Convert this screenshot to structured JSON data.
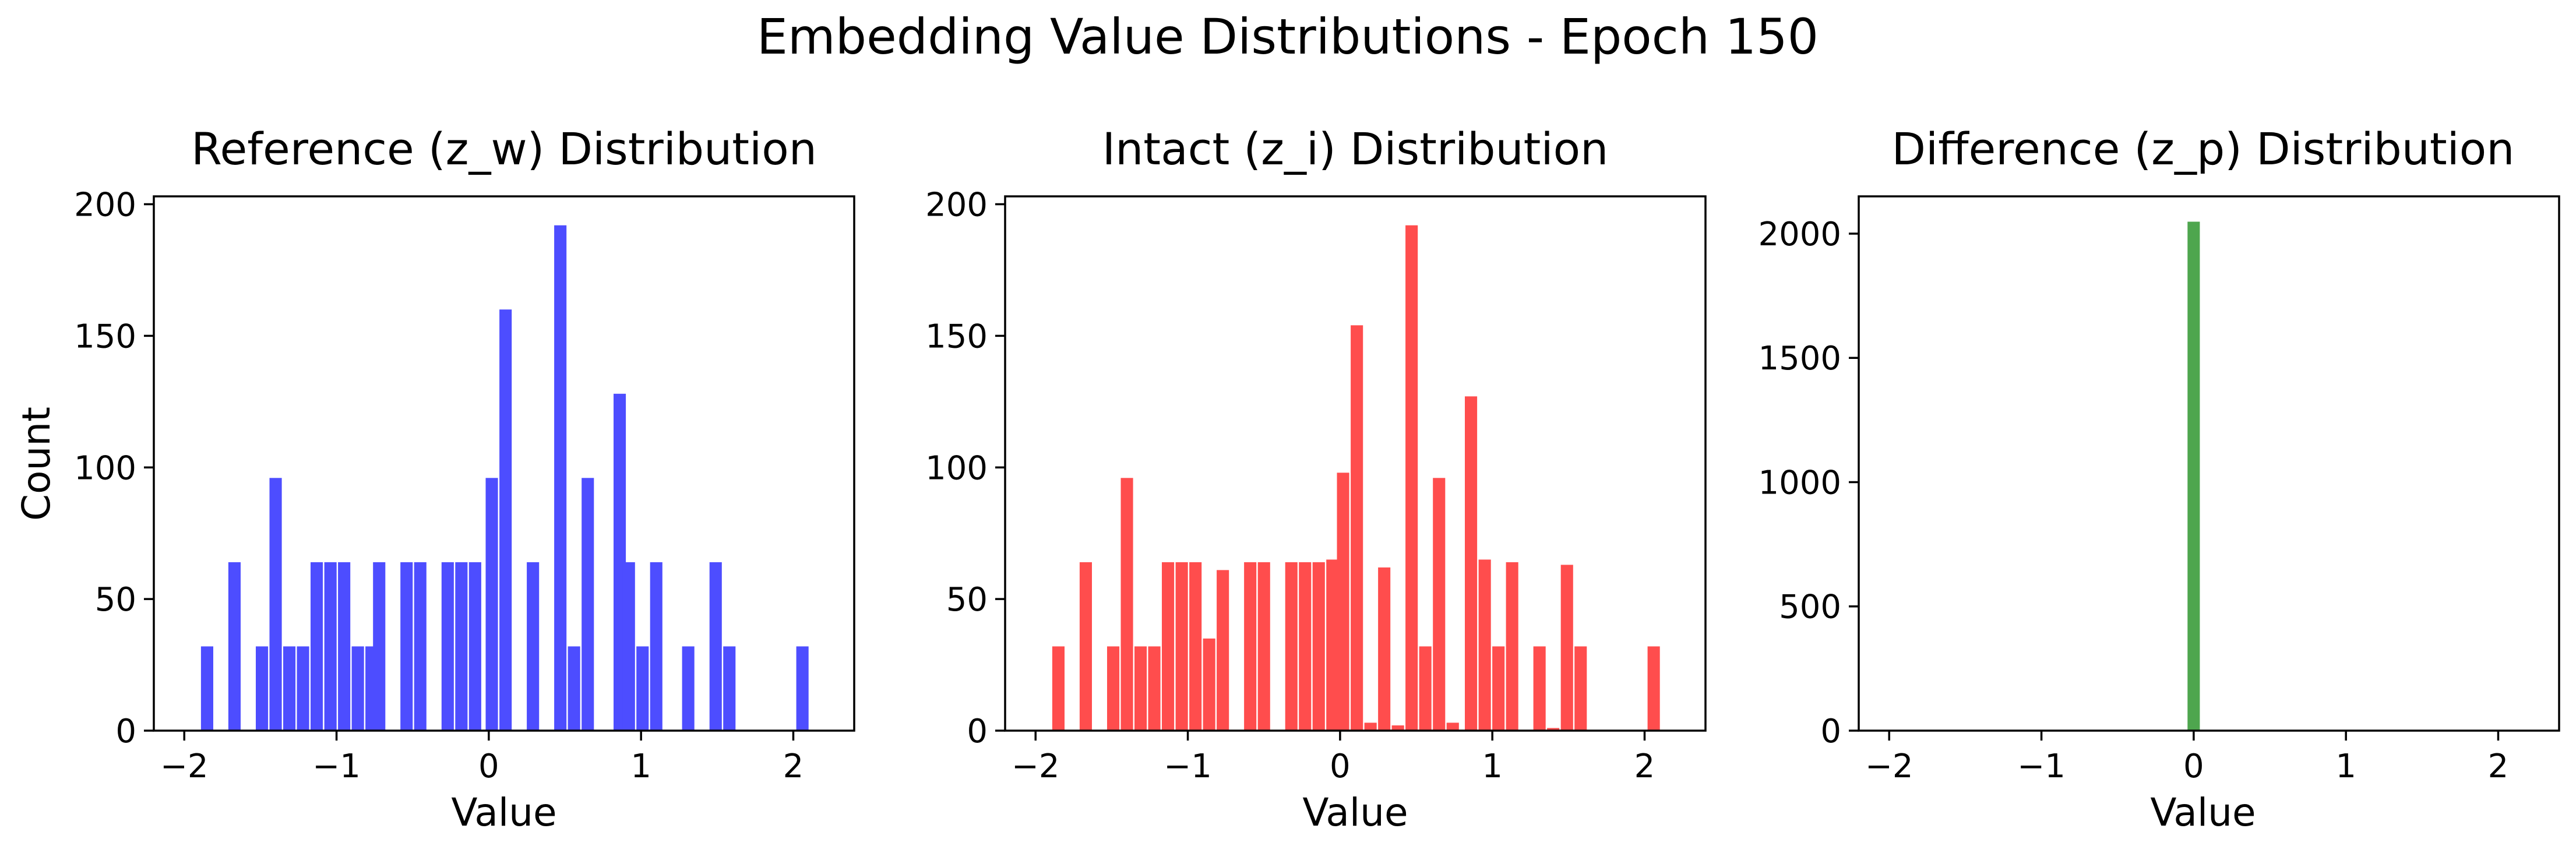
{
  "figure": {
    "title": "Embedding Value Distributions - Epoch 150"
  },
  "chart_data": [
    {
      "type": "bar",
      "title": "Reference (z_w) Distribution",
      "xlabel": "Value",
      "ylabel": "Count",
      "color": "#4d4dff",
      "xlim": [
        -2.2,
        2.4
      ],
      "ylim": [
        0,
        203
      ],
      "xticks": [
        -2,
        -1,
        0,
        1,
        2
      ],
      "xtick_labels": [
        "−2",
        "−1",
        "0",
        "1",
        "2"
      ],
      "yticks": [
        0,
        50,
        100,
        150,
        200
      ],
      "ytick_labels": [
        "0",
        "50",
        "100",
        "150",
        "200"
      ],
      "bin_width": 0.0808,
      "bins": [
        {
          "x": -1.85,
          "count": 32
        },
        {
          "x": -1.67,
          "count": 64
        },
        {
          "x": -1.49,
          "count": 32
        },
        {
          "x": -1.4,
          "count": 96
        },
        {
          "x": -1.31,
          "count": 32
        },
        {
          "x": -1.22,
          "count": 32
        },
        {
          "x": -1.13,
          "count": 64
        },
        {
          "x": -1.04,
          "count": 64
        },
        {
          "x": -0.95,
          "count": 64
        },
        {
          "x": -0.86,
          "count": 32
        },
        {
          "x": -0.77,
          "count": 32
        },
        {
          "x": -0.72,
          "count": 64
        },
        {
          "x": -0.54,
          "count": 64
        },
        {
          "x": -0.45,
          "count": 64
        },
        {
          "x": -0.27,
          "count": 64
        },
        {
          "x": -0.18,
          "count": 64
        },
        {
          "x": -0.09,
          "count": 64
        },
        {
          "x": 0.02,
          "count": 96
        },
        {
          "x": 0.11,
          "count": 160
        },
        {
          "x": 0.29,
          "count": 64
        },
        {
          "x": 0.47,
          "count": 192
        },
        {
          "x": 0.56,
          "count": 32
        },
        {
          "x": 0.65,
          "count": 96
        },
        {
          "x": 0.86,
          "count": 128
        },
        {
          "x": 0.92,
          "count": 64
        },
        {
          "x": 1.01,
          "count": 32
        },
        {
          "x": 1.1,
          "count": 64
        },
        {
          "x": 1.31,
          "count": 32
        },
        {
          "x": 1.49,
          "count": 64
        },
        {
          "x": 1.58,
          "count": 32
        },
        {
          "x": 2.06,
          "count": 32
        }
      ]
    },
    {
      "type": "bar",
      "title": "Intact (z_i) Distribution",
      "xlabel": "Value",
      "ylabel": "",
      "color": "#ff4d4d",
      "xlim": [
        -2.2,
        2.4
      ],
      "ylim": [
        0,
        203
      ],
      "xticks": [
        -2,
        -1,
        0,
        1,
        2
      ],
      "xtick_labels": [
        "−2",
        "−1",
        "0",
        "1",
        "2"
      ],
      "yticks": [
        0,
        50,
        100,
        150,
        200
      ],
      "ytick_labels": [
        "0",
        "50",
        "100",
        "150",
        "200"
      ],
      "bin_width": 0.0808,
      "bins": [
        {
          "x": -1.85,
          "count": 32
        },
        {
          "x": -1.67,
          "count": 64
        },
        {
          "x": -1.49,
          "count": 32
        },
        {
          "x": -1.4,
          "count": 96
        },
        {
          "x": -1.31,
          "count": 32
        },
        {
          "x": -1.22,
          "count": 32
        },
        {
          "x": -1.13,
          "count": 64
        },
        {
          "x": -1.04,
          "count": 64
        },
        {
          "x": -0.95,
          "count": 64
        },
        {
          "x": -0.86,
          "count": 35
        },
        {
          "x": -0.77,
          "count": 61
        },
        {
          "x": -0.59,
          "count": 64
        },
        {
          "x": -0.5,
          "count": 64
        },
        {
          "x": -0.32,
          "count": 64
        },
        {
          "x": -0.23,
          "count": 64
        },
        {
          "x": -0.14,
          "count": 64
        },
        {
          "x": -0.05,
          "count": 65
        },
        {
          "x": 0.02,
          "count": 98
        },
        {
          "x": 0.11,
          "count": 154
        },
        {
          "x": 0.2,
          "count": 3
        },
        {
          "x": 0.29,
          "count": 62
        },
        {
          "x": 0.38,
          "count": 2
        },
        {
          "x": 0.47,
          "count": 192
        },
        {
          "x": 0.56,
          "count": 32
        },
        {
          "x": 0.65,
          "count": 96
        },
        {
          "x": 0.74,
          "count": 3
        },
        {
          "x": 0.86,
          "count": 127
        },
        {
          "x": 0.95,
          "count": 65
        },
        {
          "x": 1.04,
          "count": 32
        },
        {
          "x": 1.13,
          "count": 64
        },
        {
          "x": 1.31,
          "count": 32
        },
        {
          "x": 1.4,
          "count": 1
        },
        {
          "x": 1.49,
          "count": 63
        },
        {
          "x": 1.58,
          "count": 32
        },
        {
          "x": 2.06,
          "count": 32
        }
      ]
    },
    {
      "type": "bar",
      "title": "Difference (z_p) Distribution",
      "xlabel": "Value",
      "ylabel": "",
      "color": "#4ea64e",
      "xlim": [
        -2.2,
        2.4
      ],
      "ylim": [
        0,
        2150
      ],
      "xticks": [
        -2,
        -1,
        0,
        1,
        2
      ],
      "xtick_labels": [
        "−2",
        "−1",
        "0",
        "1",
        "2"
      ],
      "yticks": [
        0,
        500,
        1000,
        1500,
        2000
      ],
      "ytick_labels": [
        "0",
        "500",
        "1000",
        "1500",
        "2000"
      ],
      "bin_width": 0.0808,
      "bins": [
        {
          "x": 0.0,
          "count": 2048
        }
      ]
    }
  ]
}
